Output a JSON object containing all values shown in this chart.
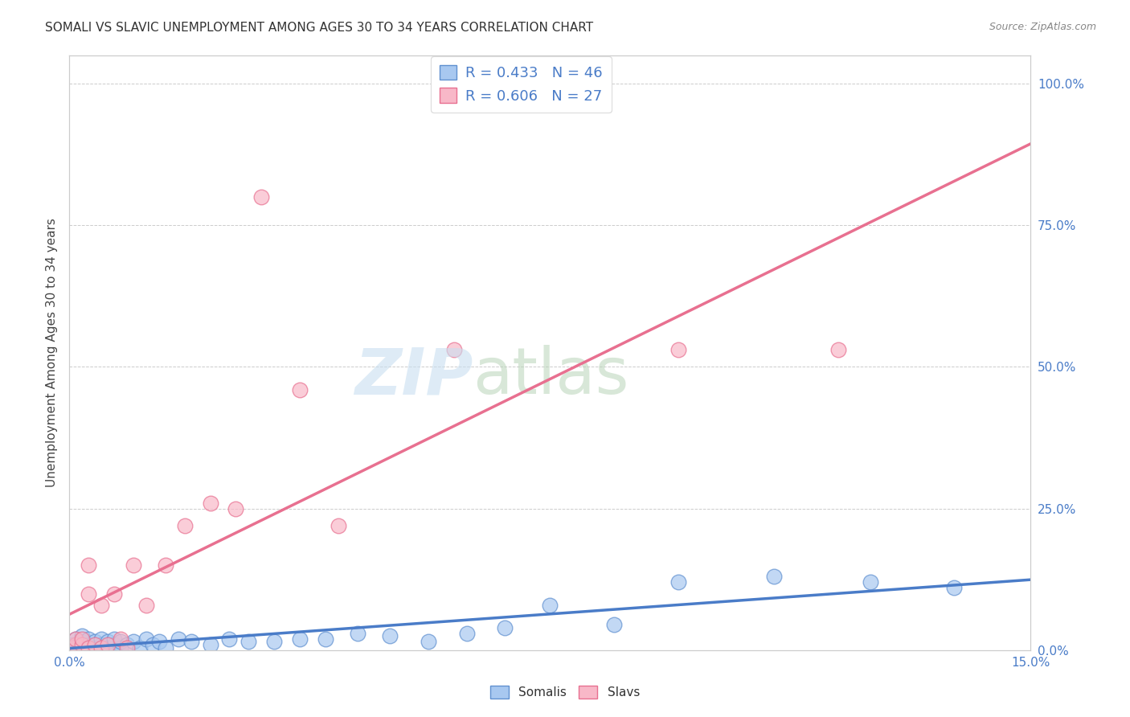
{
  "title": "SOMALI VS SLAVIC UNEMPLOYMENT AMONG AGES 30 TO 34 YEARS CORRELATION CHART",
  "source": "Source: ZipAtlas.com",
  "ylabel_label": "Unemployment Among Ages 30 to 34 years",
  "legend_somali": "R = 0.433   N = 46",
  "legend_slavs": "R = 0.606   N = 27",
  "somali_fill_color": "#a8c8f0",
  "somali_edge_color": "#6090d0",
  "slavs_fill_color": "#f8b8c8",
  "slavs_edge_color": "#e87090",
  "somali_line_color": "#4a7cc8",
  "slavs_line_color": "#e87090",
  "watermark_zip_color": "#c8dff0",
  "watermark_atlas_color": "#b8d4b8",
  "xlim": [
    0.0,
    0.15
  ],
  "ylim": [
    0.0,
    1.05
  ],
  "somali_x": [
    0.0005,
    0.001,
    0.001,
    0.0015,
    0.002,
    0.002,
    0.002,
    0.003,
    0.003,
    0.003,
    0.004,
    0.004,
    0.005,
    0.005,
    0.006,
    0.006,
    0.007,
    0.007,
    0.008,
    0.008,
    0.009,
    0.01,
    0.011,
    0.012,
    0.013,
    0.014,
    0.015,
    0.017,
    0.019,
    0.022,
    0.025,
    0.028,
    0.032,
    0.036,
    0.04,
    0.045,
    0.05,
    0.056,
    0.062,
    0.068,
    0.075,
    0.085,
    0.095,
    0.11,
    0.125,
    0.138
  ],
  "somali_y": [
    0.01,
    0.005,
    0.02,
    0.01,
    0.005,
    0.015,
    0.025,
    0.005,
    0.01,
    0.02,
    0.005,
    0.015,
    0.01,
    0.02,
    0.005,
    0.015,
    0.01,
    0.02,
    0.005,
    0.015,
    0.01,
    0.015,
    0.005,
    0.02,
    0.01,
    0.015,
    0.005,
    0.02,
    0.015,
    0.01,
    0.02,
    0.015,
    0.015,
    0.02,
    0.02,
    0.03,
    0.025,
    0.015,
    0.03,
    0.04,
    0.08,
    0.045,
    0.12,
    0.13,
    0.12,
    0.11
  ],
  "slavs_x": [
    0.0005,
    0.001,
    0.001,
    0.002,
    0.002,
    0.003,
    0.003,
    0.003,
    0.004,
    0.005,
    0.005,
    0.006,
    0.007,
    0.008,
    0.009,
    0.01,
    0.012,
    0.015,
    0.018,
    0.022,
    0.026,
    0.03,
    0.036,
    0.042,
    0.06,
    0.095,
    0.12
  ],
  "slavs_y": [
    0.005,
    0.01,
    0.02,
    0.01,
    0.02,
    0.005,
    0.1,
    0.15,
    0.01,
    0.005,
    0.08,
    0.01,
    0.1,
    0.02,
    0.005,
    0.15,
    0.08,
    0.15,
    0.22,
    0.26,
    0.25,
    0.8,
    0.46,
    0.22,
    0.53,
    0.53,
    0.53
  ]
}
